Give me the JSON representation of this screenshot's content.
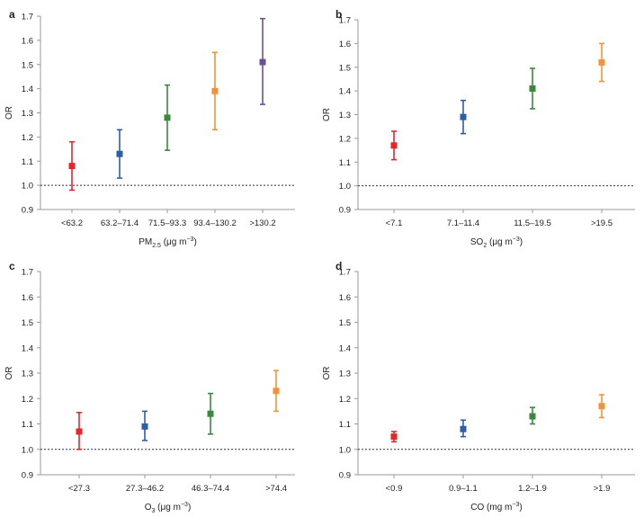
{
  "figure": {
    "background": "#ffffff",
    "axis_color": "#999999",
    "reference_line_color": "#333333"
  },
  "chart_data": [
    {
      "panel": "a",
      "type": "scatter",
      "style": "point-with-error-bars",
      "xlabel_main": "PM",
      "xlabel_sub": "2.5",
      "xlabel_unit_prefix": " (μg m",
      "xlabel_unit_exp": "−3",
      "xlabel_unit_suffix": ")",
      "ylabel": "OR",
      "ylim": [
        0.9,
        1.7
      ],
      "yticks": [
        "0.9",
        "1.0",
        "1.1",
        "1.2",
        "1.3",
        "1.4",
        "1.5",
        "1.6",
        "1.7"
      ],
      "reference_line": 1.0,
      "categories": [
        "<63.2",
        "63.2–71.4",
        "71.5–93.3",
        "93.4–130.2",
        ">130.2"
      ],
      "values": [
        1.08,
        1.13,
        1.28,
        1.39,
        1.51
      ],
      "lower": [
        0.98,
        1.03,
        1.145,
        1.23,
        1.335
      ],
      "upper": [
        1.18,
        1.23,
        1.415,
        1.55,
        1.69
      ],
      "colors": [
        "#e8262a",
        "#2e5ea8",
        "#3a8a3e",
        "#f2923a",
        "#6a4fa0"
      ]
    },
    {
      "panel": "b",
      "type": "scatter",
      "style": "point-with-error-bars",
      "xlabel_main": "SO",
      "xlabel_sub": "2",
      "xlabel_unit_prefix": " (μg m",
      "xlabel_unit_exp": "−3",
      "xlabel_unit_suffix": ")",
      "ylabel": "OR",
      "ylim": [
        0.9,
        1.7
      ],
      "yticks": [
        "0.9",
        "1.0",
        "1.1",
        "1.2",
        "1.3",
        "1.4",
        "1.5",
        "1.6",
        "1.7"
      ],
      "reference_line": 1.0,
      "categories": [
        "<7.1",
        "7.1–11.4",
        "11.5–19.5",
        ">19.5"
      ],
      "values": [
        1.17,
        1.29,
        1.41,
        1.52
      ],
      "lower": [
        1.11,
        1.22,
        1.325,
        1.44
      ],
      "upper": [
        1.23,
        1.36,
        1.495,
        1.6
      ],
      "colors": [
        "#e8262a",
        "#2e5ea8",
        "#3a8a3e",
        "#f2923a"
      ]
    },
    {
      "panel": "c",
      "type": "scatter",
      "style": "point-with-error-bars",
      "xlabel_main": "O",
      "xlabel_sub": "3",
      "xlabel_unit_prefix": " (μg m",
      "xlabel_unit_exp": "−3",
      "xlabel_unit_suffix": ")",
      "ylabel": "OR",
      "ylim": [
        0.9,
        1.7
      ],
      "yticks": [
        "0.9",
        "1.0",
        "1.1",
        "1.2",
        "1.3",
        "1.4",
        "1.5",
        "1.6",
        "1.7"
      ],
      "reference_line": 1.0,
      "categories": [
        "<27.3",
        "27.3–46.2",
        "46.3–74.4",
        ">74.4"
      ],
      "values": [
        1.07,
        1.09,
        1.14,
        1.23
      ],
      "lower": [
        1.0,
        1.035,
        1.06,
        1.15
      ],
      "upper": [
        1.145,
        1.15,
        1.22,
        1.31
      ],
      "colors": [
        "#e8262a",
        "#2e5ea8",
        "#3a8a3e",
        "#f2923a"
      ]
    },
    {
      "panel": "d",
      "type": "scatter",
      "style": "point-with-error-bars",
      "xlabel_main": "CO",
      "xlabel_sub": "",
      "xlabel_unit_prefix": " (mg m",
      "xlabel_unit_exp": "−3",
      "xlabel_unit_suffix": ")",
      "ylabel": "OR",
      "ylim": [
        0.9,
        1.7
      ],
      "yticks": [
        "0.9",
        "1.0",
        "1.1",
        "1.2",
        "1.3",
        "1.4",
        "1.5",
        "1.6",
        "1.7"
      ],
      "reference_line": 1.0,
      "categories": [
        "<0.9",
        "0.9–1.1",
        "1.2–1.9",
        ">1.9"
      ],
      "values": [
        1.05,
        1.08,
        1.13,
        1.17
      ],
      "lower": [
        1.03,
        1.05,
        1.1,
        1.125
      ],
      "upper": [
        1.07,
        1.115,
        1.165,
        1.215
      ],
      "colors": [
        "#e8262a",
        "#2e5ea8",
        "#3a8a3e",
        "#f2923a"
      ]
    }
  ]
}
